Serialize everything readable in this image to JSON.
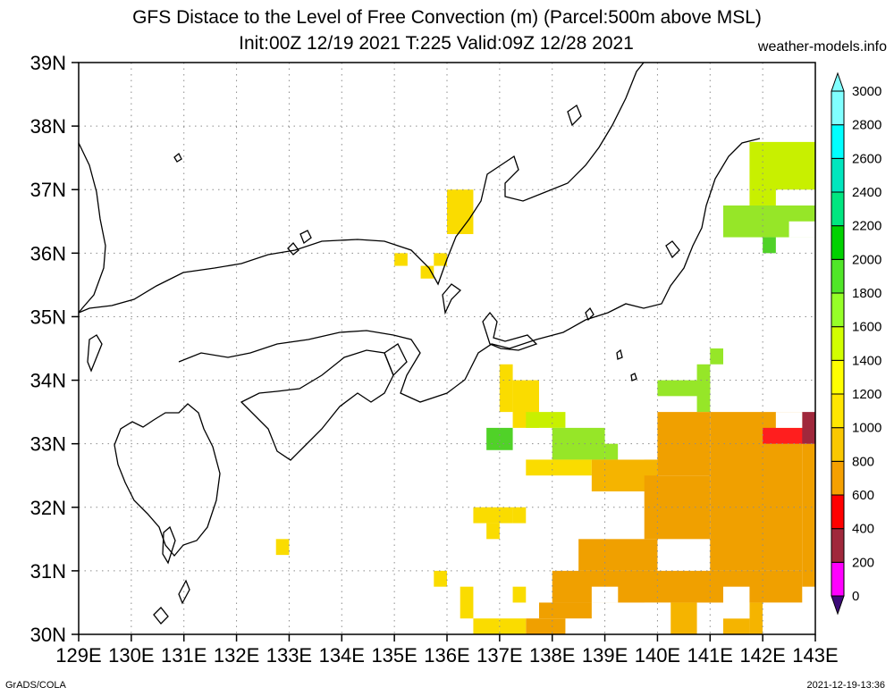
{
  "header": {
    "title_line1": "GFS Distace to the Level of Free Convection (m) (Parcel:500m above MSL)",
    "title_line2": "Init:00Z 12/19 2021 T:225 Valid:09Z 12/28 2021",
    "site": "weather-models.info"
  },
  "footer": {
    "left": "GrADS/COLA",
    "right": "2021-12-19-13:36"
  },
  "map": {
    "lon_range": [
      129,
      143
    ],
    "lat_range": [
      30,
      39
    ],
    "lon_labels": [
      "129E",
      "130E",
      "131E",
      "132E",
      "133E",
      "134E",
      "135E",
      "136E",
      "137E",
      "138E",
      "139E",
      "140E",
      "141E",
      "142E",
      "143E"
    ],
    "lat_labels": [
      "30N",
      "31N",
      "32N",
      "33N",
      "34N",
      "35N",
      "36N",
      "37N",
      "38N",
      "39N"
    ],
    "grid": "dotted"
  },
  "colorbar": {
    "labels": [
      "0",
      "200",
      "400",
      "600",
      "800",
      "1000",
      "1200",
      "1400",
      "1600",
      "1800",
      "2000",
      "2200",
      "2400",
      "2600",
      "2800",
      "3000"
    ],
    "colors": [
      "#3c0a78",
      "#ff00ff",
      "#a0283c",
      "#ff0000",
      "#f5a000",
      "#fac800",
      "#ffe600",
      "#ffff00",
      "#d2ff00",
      "#96ff28",
      "#50e628",
      "#00d200",
      "#00e680",
      "#00e6be",
      "#00ffff",
      "#80ffff"
    ]
  },
  "field": {
    "note_colors": {
      "y": "#fadc00",
      "o": "#f5b400",
      "O": "#f0a000",
      "r": "#ff1e1e",
      "b": "#a0283c",
      "g": "#96e628",
      "G": "#50d228",
      "l": "#c8f000"
    }
  }
}
